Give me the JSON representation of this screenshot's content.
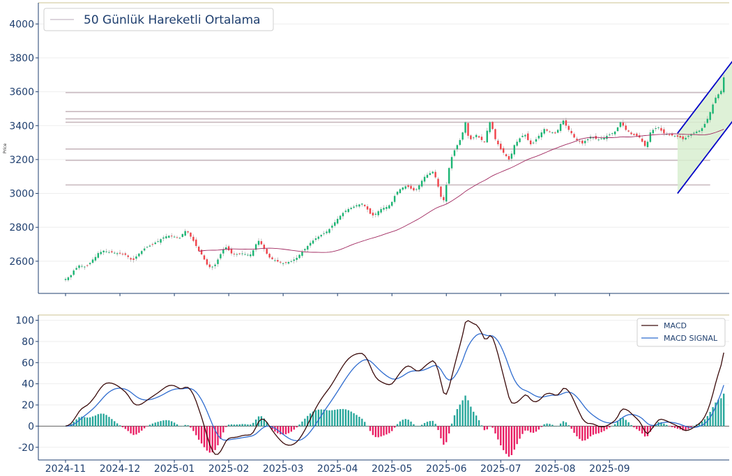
{
  "chart_data": [
    {
      "type": "candlestick",
      "title": "",
      "ylabel": "Price",
      "ylim": [
        2410,
        4125
      ],
      "yticks": [
        2600,
        2800,
        3000,
        3200,
        3400,
        3600,
        3800,
        4000
      ],
      "xlim": [
        -10,
        244
      ],
      "legend": {
        "position": "top-left",
        "entries": [
          "50 Günlük Hareketli Ortalama"
        ]
      },
      "colors": {
        "up": "#1bb573",
        "down": "#f0434a",
        "ma": "#a0285f",
        "levels": "#c8b8be",
        "channel": "#0000c8",
        "channel_fill": "#d8efd0",
        "axis": "#1f3f6f"
      },
      "closes": [
        2495,
        2505,
        2518,
        2545,
        2560,
        2575,
        2572,
        2568,
        2574,
        2590,
        2610,
        2625,
        2648,
        2655,
        2662,
        2658,
        2654,
        2652,
        2650,
        2647,
        2645,
        2640,
        2638,
        2625,
        2610,
        2608,
        2628,
        2645,
        2660,
        2675,
        2685,
        2692,
        2700,
        2710,
        2718,
        2730,
        2740,
        2747,
        2750,
        2748,
        2745,
        2740,
        2738,
        2760,
        2778,
        2770,
        2745,
        2720,
        2690,
        2660,
        2640,
        2610,
        2580,
        2565,
        2568,
        2580,
        2610,
        2642,
        2670,
        2682,
        2664,
        2646,
        2640,
        2642,
        2644,
        2646,
        2642,
        2638,
        2640,
        2665,
        2700,
        2720,
        2700,
        2672,
        2644,
        2622,
        2612,
        2606,
        2598,
        2592,
        2588,
        2590,
        2595,
        2600,
        2610,
        2620,
        2638,
        2655,
        2672,
        2690,
        2708,
        2722,
        2735,
        2745,
        2755,
        2765,
        2775,
        2790,
        2810,
        2830,
        2850,
        2868,
        2885,
        2898,
        2908,
        2915,
        2922,
        2930,
        2935,
        2940,
        2925,
        2905,
        2880,
        2870,
        2880,
        2895,
        2908,
        2915,
        2920,
        2930,
        2950,
        2985,
        3010,
        3025,
        3035,
        3042,
        3038,
        3028,
        3018,
        3025,
        3048,
        3075,
        3098,
        3110,
        3120,
        3128,
        3095,
        3040,
        2980,
        2960,
        3050,
        3150,
        3215,
        3255,
        3285,
        3315,
        3360,
        3420,
        3340,
        3320,
        3330,
        3345,
        3330,
        3315,
        3305,
        3370,
        3420,
        3380,
        3320,
        3290,
        3260,
        3240,
        3220,
        3200,
        3235,
        3285,
        3305,
        3325,
        3340,
        3345,
        3315,
        3290,
        3300,
        3320,
        3340,
        3360,
        3380,
        3370,
        3365,
        3360,
        3355,
        3375,
        3410,
        3430,
        3400,
        3375,
        3355,
        3330,
        3315,
        3305,
        3295,
        3310,
        3320,
        3335,
        3330,
        3322,
        3318,
        3324,
        3328,
        3340,
        3348,
        3355,
        3365,
        3390,
        3420,
        3400,
        3375,
        3365,
        3350,
        3345,
        3340,
        3330,
        3305,
        3280,
        3305,
        3360,
        3375,
        3385,
        3390,
        3370,
        3355,
        3350,
        3345,
        3342,
        3340,
        3335,
        3330,
        3320,
        3328,
        3340,
        3350,
        3358,
        3365,
        3370,
        3385,
        3410,
        3440,
        3480,
        3525,
        3565,
        3585,
        3605,
        3685
      ],
      "ma_start_index": 49,
      "levels": [
        3050,
        3195,
        3262,
        3420,
        3440,
        3483,
        3595
      ],
      "channel": {
        "upper": [
          [
            225,
            3355
          ],
          [
            258,
            4050
          ]
        ],
        "lower": [
          [
            225,
            3000
          ],
          [
            258,
            3695
          ]
        ],
        "fill_x": [
          225,
          258
        ]
      },
      "months": [
        {
          "label": "2024-11",
          "x": 0
        },
        {
          "label": "2024-12",
          "x": 20
        },
        {
          "label": "2025-01",
          "x": 40
        },
        {
          "label": "2025-02",
          "x": 60
        },
        {
          "label": "2025-03",
          "x": 80
        },
        {
          "label": "2025-04",
          "x": 100
        },
        {
          "label": "2025-05",
          "x": 120
        },
        {
          "label": "2025-06",
          "x": 140
        },
        {
          "label": "2025-07",
          "x": 160
        },
        {
          "label": "2025-08",
          "x": 180
        },
        {
          "label": "2025-09",
          "x": 200
        }
      ]
    },
    {
      "type": "line+bar",
      "ylim": [
        -32,
        105
      ],
      "yticks": [
        -20,
        0,
        20,
        40,
        60,
        80,
        100
      ],
      "legend": {
        "position": "top-right"
      },
      "series": [
        {
          "name": "MACD",
          "color": "#3a0a0a"
        },
        {
          "name": "MACD SIGNAL",
          "color": "#2f6ccf"
        }
      ],
      "histogram_colors": {
        "positive": "#26a69a",
        "negative": "#e91e63"
      },
      "xticks": [
        "2024-11",
        "2024-12",
        "2025-01",
        "2025-02",
        "2025-03",
        "2025-04",
        "2025-05",
        "2025-06",
        "2025-07",
        "2025-08",
        "2025-09"
      ]
    }
  ]
}
